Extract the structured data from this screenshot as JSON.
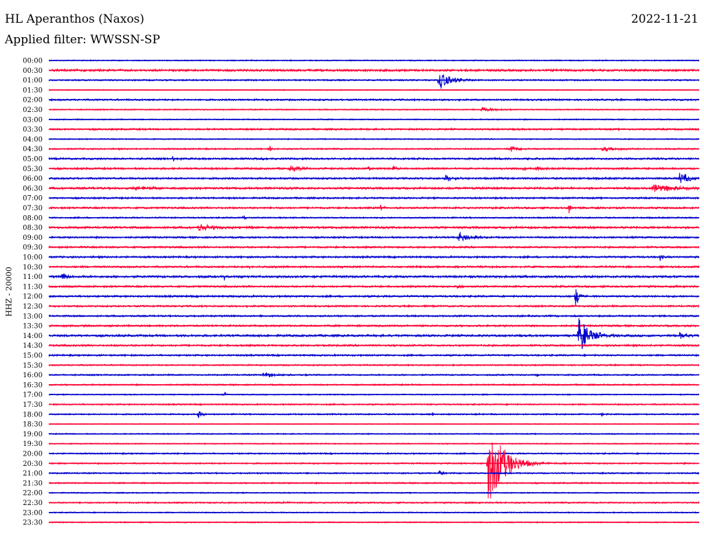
{
  "header": {
    "station": "HL Aperanthos (Naxos)",
    "date": "2022-11-21",
    "filter": "Applied filter: WWSSN-SP"
  },
  "chart_data": {
    "type": "line",
    "ylabel": "HHZ - 20000",
    "colors": {
      "even": "#0000cc",
      "odd": "#ff0033"
    },
    "rows": [
      {
        "label": "00:00",
        "color": "even",
        "amp": 0.8,
        "events": []
      },
      {
        "label": "00:30",
        "color": "odd",
        "amp": 1.5,
        "events": []
      },
      {
        "label": "01:00",
        "color": "even",
        "amp": 1.0,
        "events": [
          {
            "x": 0.6,
            "a": 14,
            "w": 0.03
          }
        ]
      },
      {
        "label": "01:30",
        "color": "odd",
        "amp": 0.6,
        "events": []
      },
      {
        "label": "02:00",
        "color": "even",
        "amp": 1.2,
        "events": []
      },
      {
        "label": "02:30",
        "color": "odd",
        "amp": 0.8,
        "events": [
          {
            "x": 0.665,
            "a": 4,
            "w": 0.04
          }
        ]
      },
      {
        "label": "03:00",
        "color": "even",
        "amp": 0.8,
        "events": []
      },
      {
        "label": "03:30",
        "color": "odd",
        "amp": 1.2,
        "events": []
      },
      {
        "label": "04:00",
        "color": "even",
        "amp": 0.8,
        "events": []
      },
      {
        "label": "04:30",
        "color": "odd",
        "amp": 1.0,
        "events": [
          {
            "x": 0.34,
            "a": 6,
            "w": 0.005
          },
          {
            "x": 0.71,
            "a": 7,
            "w": 0.015
          },
          {
            "x": 0.85,
            "a": 4,
            "w": 0.04
          }
        ]
      },
      {
        "label": "05:00",
        "color": "even",
        "amp": 1.3,
        "events": [
          {
            "x": 0.19,
            "a": 4,
            "w": 0.015
          },
          {
            "x": 0.33,
            "a": 4,
            "w": 0.005
          }
        ]
      },
      {
        "label": "05:30",
        "color": "odd",
        "amp": 1.3,
        "events": [
          {
            "x": 0.37,
            "a": 4,
            "w": 0.04
          },
          {
            "x": 0.49,
            "a": 5,
            "w": 0.005
          },
          {
            "x": 0.53,
            "a": 5,
            "w": 0.005
          },
          {
            "x": 0.73,
            "a": 6,
            "w": 0.005
          },
          {
            "x": 0.75,
            "a": 4,
            "w": 0.02
          }
        ]
      },
      {
        "label": "06:00",
        "color": "even",
        "amp": 1.3,
        "events": [
          {
            "x": 0.61,
            "a": 6,
            "w": 0.02
          },
          {
            "x": 0.97,
            "a": 9,
            "w": 0.03
          }
        ]
      },
      {
        "label": "06:30",
        "color": "odd",
        "amp": 1.5,
        "events": [
          {
            "x": 0.13,
            "a": 3,
            "w": 0.06
          },
          {
            "x": 0.93,
            "a": 6,
            "w": 0.07
          }
        ]
      },
      {
        "label": "07:00",
        "color": "even",
        "amp": 1.2,
        "events": []
      },
      {
        "label": "07:30",
        "color": "odd",
        "amp": 1.3,
        "events": [
          {
            "x": 0.51,
            "a": 5,
            "w": 0.01
          },
          {
            "x": 0.8,
            "a": 9,
            "w": 0.005
          }
        ]
      },
      {
        "label": "08:00",
        "color": "even",
        "amp": 1.0,
        "events": [
          {
            "x": 0.3,
            "a": 5,
            "w": 0.005
          }
        ]
      },
      {
        "label": "08:30",
        "color": "odd",
        "amp": 1.5,
        "events": [
          {
            "x": 0.23,
            "a": 6,
            "w": 0.04
          }
        ]
      },
      {
        "label": "09:00",
        "color": "even",
        "amp": 1.2,
        "events": [
          {
            "x": 0.63,
            "a": 8,
            "w": 0.03
          }
        ]
      },
      {
        "label": "09:30",
        "color": "odd",
        "amp": 1.3,
        "events": []
      },
      {
        "label": "10:00",
        "color": "even",
        "amp": 1.3,
        "events": [
          {
            "x": 0.94,
            "a": 6,
            "w": 0.005
          }
        ]
      },
      {
        "label": "10:30",
        "color": "odd",
        "amp": 1.3,
        "events": [
          {
            "x": 0.31,
            "a": 8,
            "w": 0.005
          }
        ]
      },
      {
        "label": "11:00",
        "color": "even",
        "amp": 1.5,
        "events": [
          {
            "x": 0.02,
            "a": 5,
            "w": 0.02
          },
          {
            "x": 0.27,
            "a": 4,
            "w": 0.005
          }
        ]
      },
      {
        "label": "11:30",
        "color": "odd",
        "amp": 1.3,
        "events": [
          {
            "x": 0.63,
            "a": 6,
            "w": 0.005
          }
        ]
      },
      {
        "label": "12:00",
        "color": "even",
        "amp": 1.3,
        "events": [
          {
            "x": 0.81,
            "a": 16,
            "w": 0.01
          }
        ]
      },
      {
        "label": "12:30",
        "color": "odd",
        "amp": 1.2,
        "events": []
      },
      {
        "label": "13:00",
        "color": "even",
        "amp": 1.2,
        "events": []
      },
      {
        "label": "13:30",
        "color": "odd",
        "amp": 1.3,
        "events": []
      },
      {
        "label": "14:00",
        "color": "even",
        "amp": 1.5,
        "events": [
          {
            "x": 0.815,
            "a": 28,
            "w": 0.03
          },
          {
            "x": 0.97,
            "a": 5,
            "w": 0.02
          }
        ]
      },
      {
        "label": "14:30",
        "color": "odd",
        "amp": 1.3,
        "events": []
      },
      {
        "label": "15:00",
        "color": "even",
        "amp": 1.2,
        "events": []
      },
      {
        "label": "15:30",
        "color": "odd",
        "amp": 1.0,
        "events": []
      },
      {
        "label": "16:00",
        "color": "even",
        "amp": 1.0,
        "events": [
          {
            "x": 0.33,
            "a": 4,
            "w": 0.04
          },
          {
            "x": 0.75,
            "a": 4,
            "w": 0.005
          }
        ]
      },
      {
        "label": "16:30",
        "color": "odd",
        "amp": 1.0,
        "events": []
      },
      {
        "label": "17:00",
        "color": "even",
        "amp": 0.8,
        "events": [
          {
            "x": 0.27,
            "a": 4,
            "w": 0.005
          }
        ]
      },
      {
        "label": "17:30",
        "color": "odd",
        "amp": 1.0,
        "events": []
      },
      {
        "label": "18:00",
        "color": "even",
        "amp": 1.0,
        "events": [
          {
            "x": 0.23,
            "a": 7,
            "w": 0.01
          },
          {
            "x": 0.59,
            "a": 3,
            "w": 0.005
          },
          {
            "x": 0.85,
            "a": 4,
            "w": 0.005
          }
        ]
      },
      {
        "label": "18:30",
        "color": "odd",
        "amp": 0.6,
        "events": []
      },
      {
        "label": "19:00",
        "color": "even",
        "amp": 0.8,
        "events": []
      },
      {
        "label": "19:30",
        "color": "odd",
        "amp": 0.8,
        "events": []
      },
      {
        "label": "20:00",
        "color": "even",
        "amp": 1.0,
        "events": []
      },
      {
        "label": "20:30",
        "color": "odd",
        "amp": 1.0,
        "events": [
          {
            "x": 0.675,
            "a": 65,
            "w": 0.04
          }
        ]
      },
      {
        "label": "21:00",
        "color": "even",
        "amp": 1.0,
        "events": [
          {
            "x": 0.6,
            "a": 4,
            "w": 0.02
          }
        ]
      },
      {
        "label": "21:30",
        "color": "odd",
        "amp": 1.0,
        "events": []
      },
      {
        "label": "22:00",
        "color": "even",
        "amp": 0.8,
        "events": []
      },
      {
        "label": "22:30",
        "color": "odd",
        "amp": 1.0,
        "events": [
          {
            "x": 0.36,
            "a": 4,
            "w": 0.01
          }
        ]
      },
      {
        "label": "23:00",
        "color": "even",
        "amp": 0.8,
        "events": []
      },
      {
        "label": "23:30",
        "color": "odd",
        "amp": 0.8,
        "events": []
      }
    ]
  }
}
